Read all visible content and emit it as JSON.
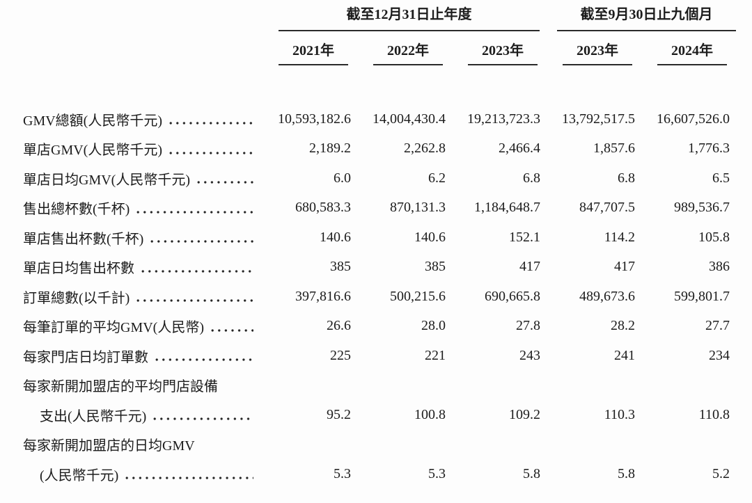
{
  "table": {
    "groups": [
      {
        "title": "截至12月31日止年度",
        "span": 3
      },
      {
        "title": "截至9月30日止九個月",
        "span": 2
      }
    ],
    "columns": [
      {
        "label": "2021年"
      },
      {
        "label": "2022年"
      },
      {
        "label": "2023年"
      },
      {
        "label": "2023年"
      },
      {
        "label": "2024年"
      }
    ],
    "rows": [
      {
        "label": "GMV總額(人民幣千元)",
        "indent": false,
        "leader": true,
        "values": [
          "10,593,182.6",
          "14,004,430.4",
          "19,213,723.3",
          "13,792,517.5",
          "16,607,526.0"
        ]
      },
      {
        "label": "單店GMV(人民幣千元)",
        "indent": false,
        "leader": true,
        "values": [
          "2,189.2",
          "2,262.8",
          "2,466.4",
          "1,857.6",
          "1,776.3"
        ]
      },
      {
        "label": "單店日均GMV(人民幣千元)",
        "indent": false,
        "leader": true,
        "values": [
          "6.0",
          "6.2",
          "6.8",
          "6.8",
          "6.5"
        ]
      },
      {
        "label": "售出總杯數(千杯)",
        "indent": false,
        "leader": true,
        "values": [
          "680,583.3",
          "870,131.3",
          "1,184,648.7",
          "847,707.5",
          "989,536.7"
        ]
      },
      {
        "label": "單店售出杯數(千杯)",
        "indent": false,
        "leader": true,
        "values": [
          "140.6",
          "140.6",
          "152.1",
          "114.2",
          "105.8"
        ]
      },
      {
        "label": "單店日均售出杯數",
        "indent": false,
        "leader": true,
        "values": [
          "385",
          "385",
          "417",
          "417",
          "386"
        ]
      },
      {
        "label": "訂單總數(以千計)",
        "indent": false,
        "leader": true,
        "values": [
          "397,816.6",
          "500,215.6",
          "690,665.8",
          "489,673.6",
          "599,801.7"
        ]
      },
      {
        "label": "每筆訂單的平均GMV(人民幣)",
        "indent": false,
        "leader": true,
        "values": [
          "26.6",
          "28.0",
          "27.8",
          "28.2",
          "27.7"
        ]
      },
      {
        "label": "每家門店日均訂單數",
        "indent": false,
        "leader": true,
        "values": [
          "225",
          "221",
          "243",
          "241",
          "234"
        ]
      },
      {
        "label": "每家新開加盟店的平均門店設備",
        "indent": false,
        "leader": false,
        "values": null
      },
      {
        "label": "支出(人民幣千元)",
        "indent": true,
        "leader": true,
        "values": [
          "95.2",
          "100.8",
          "109.2",
          "110.3",
          "110.8"
        ]
      },
      {
        "label": "每家新開加盟店的日均GMV",
        "indent": false,
        "leader": false,
        "values": null
      },
      {
        "label": "(人民幣千元)",
        "indent": true,
        "leader": true,
        "values": [
          "5.3",
          "5.3",
          "5.8",
          "5.8",
          "5.2"
        ]
      }
    ]
  }
}
